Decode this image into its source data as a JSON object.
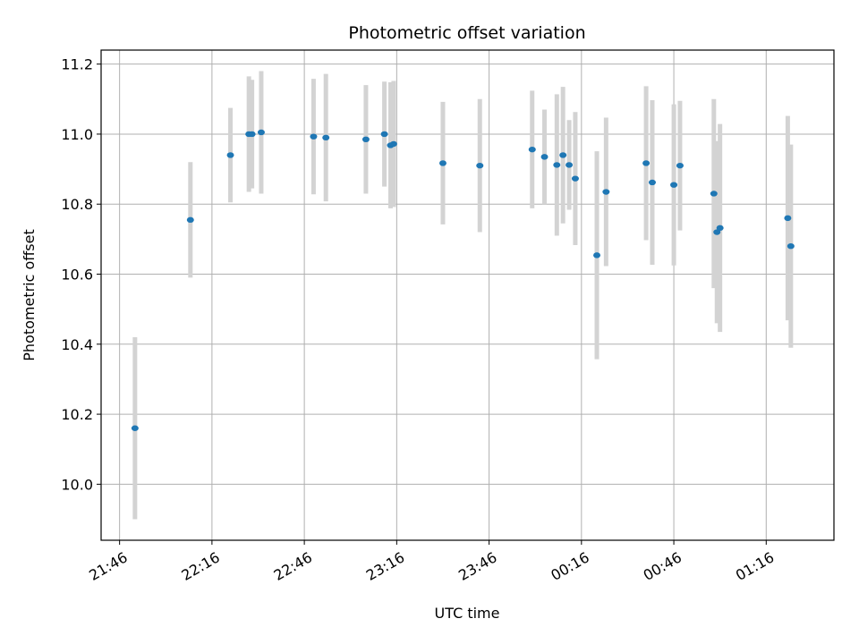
{
  "chart_data": {
    "type": "scatter",
    "title": "Photometric offset variation",
    "xlabel": "UTC time",
    "ylabel": "Photometric offset",
    "grid": true,
    "x_ticks": [
      "21:46",
      "22:16",
      "22:46",
      "23:16",
      "23:46",
      "00:16",
      "00:46",
      "01:16"
    ],
    "y_ticks": [
      "10.0",
      "10.2",
      "10.4",
      "10.6",
      "10.8",
      "11.0",
      "11.2"
    ],
    "x_range": [
      "21:40",
      "23:38 (+1 day: 01:38)"
    ],
    "ylim": [
      9.84,
      11.24
    ],
    "colors": {
      "marker": "#1f77b4",
      "errorbar": "#d3d3d3",
      "grid": "#b0b0b0"
    },
    "points": [
      {
        "time": "21:51",
        "y": 10.16,
        "err": 0.26
      },
      {
        "time": "22:09",
        "y": 10.755,
        "err": 0.165
      },
      {
        "time": "22:22",
        "y": 10.94,
        "err": 0.135
      },
      {
        "time": "22:28",
        "y": 11.0,
        "err": 0.165
      },
      {
        "time": "22:29",
        "y": 11.0,
        "err": 0.155
      },
      {
        "time": "22:32",
        "y": 11.005,
        "err": 0.175
      },
      {
        "time": "22:49",
        "y": 10.993,
        "err": 0.165
      },
      {
        "time": "22:53",
        "y": 10.99,
        "err": 0.182
      },
      {
        "time": "23:06",
        "y": 10.985,
        "err": 0.155
      },
      {
        "time": "23:12",
        "y": 11.0,
        "err": 0.15
      },
      {
        "time": "23:14",
        "y": 10.968,
        "err": 0.18
      },
      {
        "time": "23:15",
        "y": 10.972,
        "err": 0.18
      },
      {
        "time": "23:31",
        "y": 10.917,
        "err": 0.175
      },
      {
        "time": "23:43",
        "y": 10.91,
        "err": 0.19
      },
      {
        "time": "00:00",
        "y": 10.956,
        "err": 0.168
      },
      {
        "time": "00:04",
        "y": 10.935,
        "err": 0.135
      },
      {
        "time": "00:08",
        "y": 10.912,
        "err": 0.202
      },
      {
        "time": "00:10",
        "y": 10.94,
        "err": 0.195
      },
      {
        "time": "00:12",
        "y": 10.912,
        "err": 0.128
      },
      {
        "time": "00:14",
        "y": 10.873,
        "err": 0.19
      },
      {
        "time": "00:21",
        "y": 10.654,
        "err": 0.297
      },
      {
        "time": "00:24",
        "y": 10.835,
        "err": 0.212
      },
      {
        "time": "00:37",
        "y": 10.917,
        "err": 0.22
      },
      {
        "time": "00:39",
        "y": 10.862,
        "err": 0.235
      },
      {
        "time": "00:46",
        "y": 10.855,
        "err": 0.23
      },
      {
        "time": "00:48",
        "y": 10.91,
        "err": 0.185
      },
      {
        "time": "00:59",
        "y": 10.83,
        "err": 0.27
      },
      {
        "time": "01:00",
        "y": 10.72,
        "err": 0.26
      },
      {
        "time": "01:01",
        "y": 10.732,
        "err": 0.297
      },
      {
        "time": "01:23",
        "y": 10.76,
        "err": 0.292
      },
      {
        "time": "01:24",
        "y": 10.68,
        "err": 0.29
      }
    ]
  }
}
